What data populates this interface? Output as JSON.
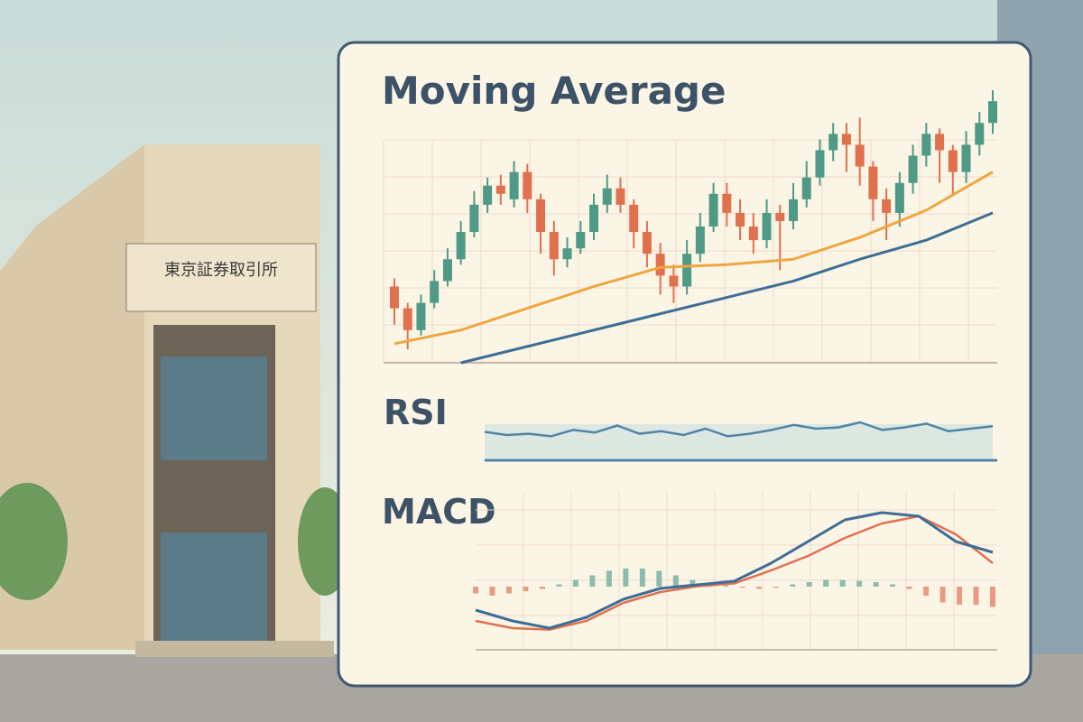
{
  "panel": {
    "sign": "東京証券取引所",
    "ma": {
      "title": "Moving Average",
      "ylim": [
        0,
        100
      ],
      "up_color": "#4f9a86",
      "down_color": "#e0714f",
      "candles": [
        [
          28,
          31,
          14,
          20
        ],
        [
          20,
          22,
          5,
          12
        ],
        [
          12,
          25,
          10,
          22
        ],
        [
          22,
          34,
          20,
          30
        ],
        [
          30,
          42,
          28,
          38
        ],
        [
          38,
          52,
          36,
          48
        ],
        [
          48,
          63,
          46,
          58
        ],
        [
          58,
          68,
          55,
          65
        ],
        [
          65,
          69,
          58,
          62
        ],
        [
          60,
          74,
          57,
          70
        ],
        [
          70,
          73,
          55,
          60
        ],
        [
          60,
          62,
          40,
          48
        ],
        [
          48,
          52,
          32,
          38
        ],
        [
          38,
          46,
          35,
          42
        ],
        [
          42,
          52,
          40,
          48
        ],
        [
          48,
          62,
          45,
          58
        ],
        [
          58,
          69,
          55,
          64
        ],
        [
          64,
          68,
          55,
          58
        ],
        [
          58,
          60,
          42,
          48
        ],
        [
          48,
          52,
          35,
          40
        ],
        [
          40,
          44,
          25,
          32
        ],
        [
          32,
          36,
          22,
          28
        ],
        [
          28,
          45,
          25,
          40
        ],
        [
          40,
          55,
          37,
          50
        ],
        [
          50,
          66,
          48,
          62
        ],
        [
          62,
          66,
          50,
          55
        ],
        [
          55,
          60,
          45,
          50
        ],
        [
          50,
          55,
          40,
          45
        ],
        [
          45,
          60,
          42,
          55
        ],
        [
          55,
          58,
          34,
          52
        ],
        [
          52,
          66,
          49,
          60
        ],
        [
          60,
          74,
          57,
          68
        ],
        [
          68,
          82,
          65,
          78
        ],
        [
          78,
          88,
          74,
          84
        ],
        [
          84,
          88,
          70,
          80
        ],
        [
          80,
          90,
          65,
          72
        ],
        [
          72,
          74,
          52,
          60
        ],
        [
          60,
          64,
          45,
          55
        ],
        [
          55,
          70,
          50,
          66
        ],
        [
          66,
          80,
          62,
          76
        ],
        [
          76,
          88,
          72,
          84
        ],
        [
          84,
          86,
          66,
          78
        ],
        [
          78,
          80,
          62,
          70
        ],
        [
          70,
          85,
          66,
          80
        ],
        [
          80,
          92,
          76,
          88
        ],
        [
          88,
          100,
          84,
          96
        ]
      ],
      "ma_fast": {
        "color": "#f0a640",
        "values": [
          7,
          12,
          20,
          28,
          35,
          36,
          38,
          46,
          56,
          70
        ]
      },
      "ma_slow": {
        "color": "#3d6e96",
        "values": [
          null,
          0,
          6,
          12,
          18,
          24,
          30,
          38,
          45,
          55
        ]
      }
    },
    "rsi": {
      "title": "RSI",
      "ylim": [
        0,
        100
      ],
      "color": "#4f86a8",
      "values": [
        45,
        40,
        42,
        38,
        48,
        44,
        55,
        42,
        46,
        40,
        50,
        38,
        42,
        48,
        56,
        50,
        52,
        60,
        48,
        52,
        58,
        46,
        50,
        54
      ]
    },
    "macd": {
      "title": "MACD",
      "ylim": [
        -1,
        1
      ],
      "macd_color": "#3d6e96",
      "signal_color": "#e0714f",
      "macd": [
        -0.45,
        -0.6,
        -0.7,
        -0.55,
        -0.3,
        -0.15,
        -0.1,
        -0.05,
        0.2,
        0.5,
        0.8,
        0.9,
        0.85,
        0.5,
        0.35
      ],
      "signal": [
        -0.6,
        -0.7,
        -0.72,
        -0.6,
        -0.35,
        -0.2,
        -0.12,
        -0.08,
        0.1,
        0.3,
        0.55,
        0.75,
        0.85,
        0.6,
        0.2
      ],
      "histogram": [
        -0.3,
        -0.4,
        -0.3,
        -0.2,
        -0.1,
        0.1,
        0.3,
        0.5,
        0.7,
        0.8,
        0.8,
        0.7,
        0.5,
        0.3,
        0.1,
        0.05,
        -0.05,
        -0.1,
        -0.05,
        0.1,
        0.2,
        0.3,
        0.3,
        0.25,
        0.2,
        0.1,
        -0.1,
        -0.4,
        -0.7,
        -0.8,
        -0.8,
        -0.9
      ]
    }
  }
}
